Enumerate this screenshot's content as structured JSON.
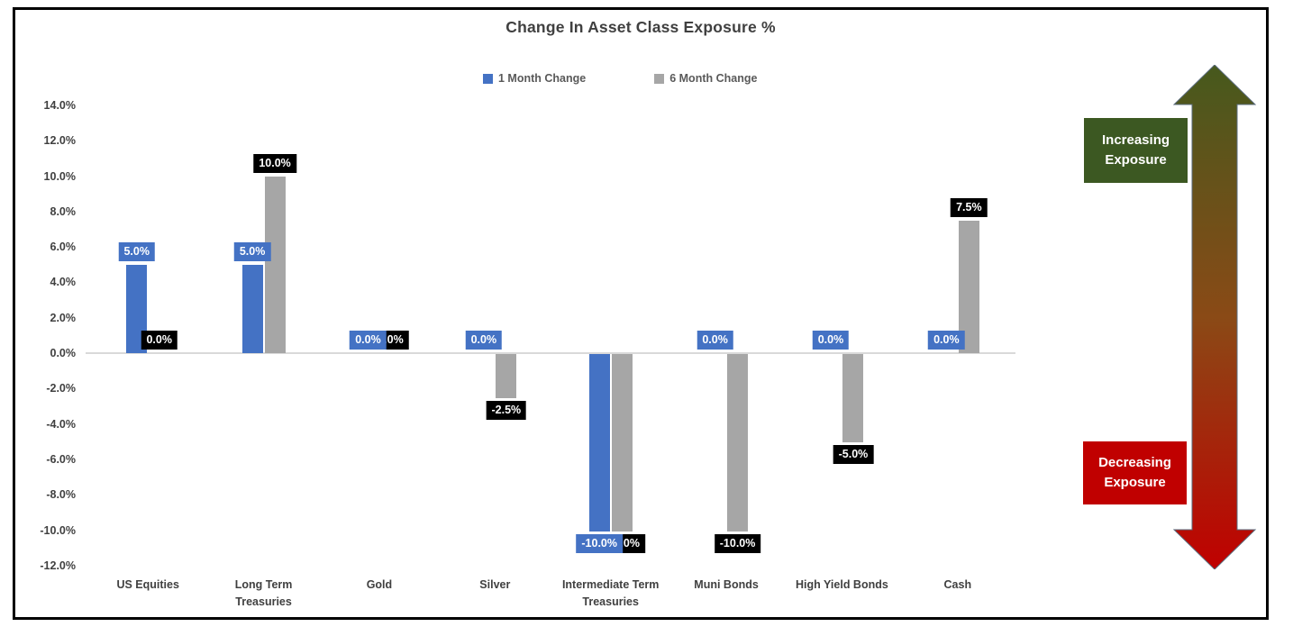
{
  "window": {
    "background": "#ffffff",
    "frame_border_color": "#000000"
  },
  "chart_data": {
    "type": "bar",
    "title": "Change In Asset Class Exposure %",
    "categories": [
      "US Equities",
      "Long Term Treasuries",
      "Gold",
      "Silver",
      "Intermediate Term Treasuries",
      "Muni Bonds",
      "High Yield Bonds",
      "Cash"
    ],
    "series": [
      {
        "name": "1 Month Change",
        "color": "#4472C4",
        "label_bg": "#4472C4",
        "values": [
          5.0,
          5.0,
          0.0,
          0.0,
          -10.0,
          0.0,
          0.0,
          0.0
        ],
        "data_labels": [
          "5.0%",
          "5.0%",
          "0.0%",
          "0.0%",
          "-10.0%",
          "0.0%",
          "0.0%",
          "0.0%"
        ]
      },
      {
        "name": "6 Month Change",
        "color": "#A6A6A6",
        "label_bg": "#000000",
        "values": [
          0.0,
          10.0,
          0.0,
          -2.5,
          -10.0,
          -10.0,
          -5.0,
          7.5
        ],
        "data_labels": [
          "0.0%",
          "10.0%",
          "0.0%",
          "-2.5%",
          "-10.0%",
          "-10.0%",
          "-5.0%",
          "7.5%"
        ]
      }
    ],
    "y_axis": {
      "min": -12,
      "max": 14,
      "step": 2,
      "tick_labels": [
        "14.0%",
        "12.0%",
        "10.0%",
        "8.0%",
        "6.0%",
        "4.0%",
        "2.0%",
        "0.0%",
        "-2.0%",
        "-4.0%",
        "-6.0%",
        "-8.0%",
        "-10.0%",
        "-12.0%"
      ]
    },
    "legend_position": "top",
    "gridlines": false,
    "axis_line_color": "#D9D9D9",
    "text_color": "#404040",
    "legend_text_color": "#595959",
    "data_label_text_color": "#FFFFFF"
  },
  "annotations": {
    "increasing": {
      "label": "Increasing Exposure",
      "color": "#3C5822"
    },
    "decreasing": {
      "label": "Decreasing Exposure",
      "color": "#C00000"
    },
    "arrow_gradient": [
      "#46591D",
      "#8A4A16",
      "#C00000"
    ],
    "arrow_outline": "#5A6B7C"
  }
}
